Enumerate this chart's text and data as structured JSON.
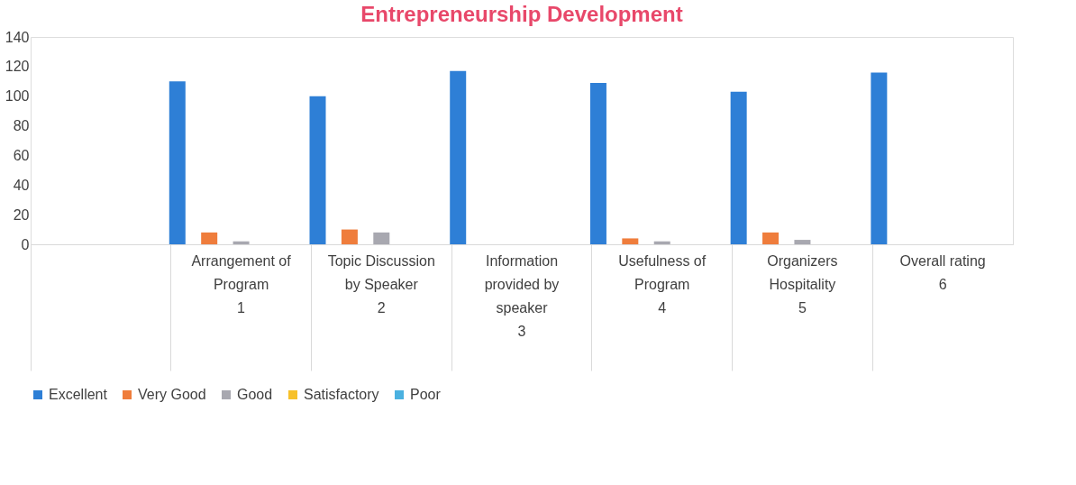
{
  "chart_data": {
    "type": "bar",
    "title": "Entrepreneurship Development",
    "categories": [
      null,
      "Arrangement of Program\n1",
      "Topic Discussion by Speaker\n2",
      "Information provided by speaker\n3",
      "Usefulness of Program\n4",
      "Organizers Hospitality\n5",
      "Overall rating\n6"
    ],
    "series": [
      {
        "name": "Excellent",
        "color": "#2e7fd6",
        "values": [
          null,
          110,
          100,
          117,
          109,
          103,
          116
        ]
      },
      {
        "name": "Very Good",
        "color": "#ef7d3c",
        "values": [
          null,
          8,
          10,
          null,
          4,
          8,
          null
        ]
      },
      {
        "name": "Good",
        "color": "#a8a8b0",
        "values": [
          null,
          2,
          8,
          null,
          2,
          3,
          null
        ]
      },
      {
        "name": "Satisfactory",
        "color": "#f7c12a",
        "values": [
          null,
          null,
          null,
          null,
          null,
          null,
          null
        ]
      },
      {
        "name": "Poor",
        "color": "#4bb1e0",
        "values": [
          null,
          null,
          null,
          null,
          null,
          null,
          null
        ]
      }
    ],
    "ylim": [
      0,
      140
    ],
    "yticks": [
      0,
      20,
      40,
      60,
      80,
      100,
      120,
      140
    ],
    "grid": false,
    "legend": "bottom"
  }
}
